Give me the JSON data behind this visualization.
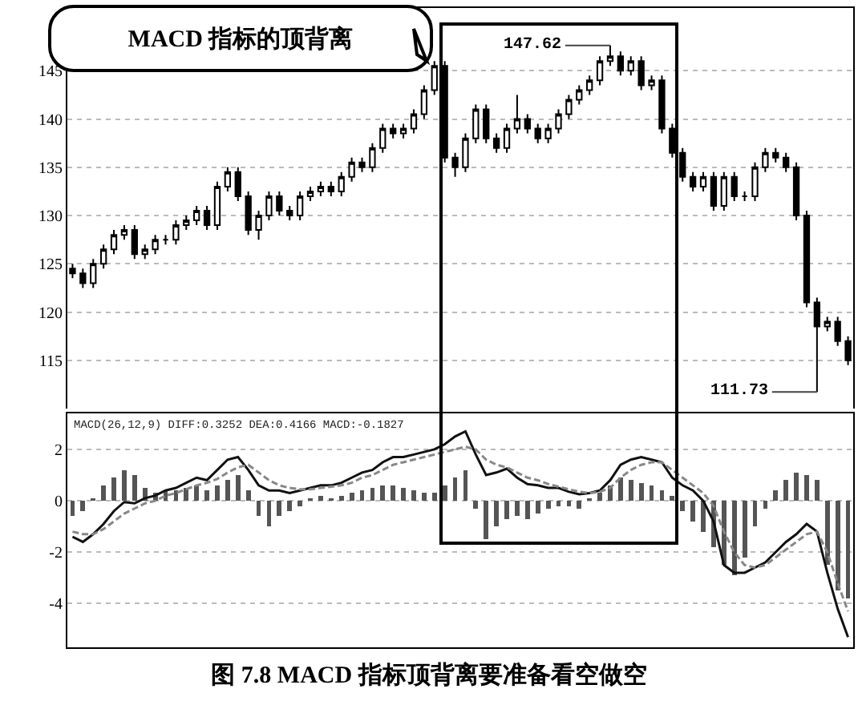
{
  "chart_data": [
    {
      "type": "candlestick",
      "title": "图 7.8    MACD 指标顶背离要准备看空做空",
      "color": "#000000",
      "categories": [
        null,
        null,
        null,
        null,
        null,
        null,
        null,
        null,
        null,
        null,
        null,
        null,
        null,
        null,
        null,
        null,
        null,
        null,
        null,
        null,
        null,
        null,
        null,
        null,
        null,
        null,
        null,
        null,
        null,
        null,
        null,
        null,
        null,
        null,
        null,
        null,
        null,
        null,
        null,
        null,
        null,
        null,
        null,
        null,
        null,
        null,
        null,
        null,
        null,
        null,
        null,
        null,
        null,
        null,
        null,
        null,
        null,
        null,
        null,
        null,
        null,
        null,
        null,
        null,
        null,
        null,
        null,
        null,
        null,
        null,
        null,
        null,
        null,
        null,
        null,
        null
      ],
      "ohlc": [
        [
          124.5,
          125,
          123.5,
          124
        ],
        [
          124,
          124.5,
          122.5,
          123
        ],
        [
          123,
          125.5,
          122.5,
          125
        ],
        [
          125,
          127,
          124.5,
          126.5
        ],
        [
          126.5,
          128.5,
          126,
          128
        ],
        [
          128,
          129,
          127.5,
          128.5
        ],
        [
          128.5,
          129,
          125.5,
          126
        ],
        [
          126,
          127,
          125.5,
          126.5
        ],
        [
          126.5,
          128,
          126,
          127.5
        ],
        [
          127.5,
          128,
          127,
          127.5
        ],
        [
          127.5,
          129.5,
          127,
          129
        ],
        [
          129,
          130,
          128.5,
          129.5
        ],
        [
          129.5,
          131,
          129,
          130.5
        ],
        [
          130.5,
          131,
          128.5,
          129
        ],
        [
          129,
          133.5,
          128.5,
          133
        ],
        [
          133,
          135,
          132.5,
          134.5
        ],
        [
          134.5,
          135,
          131.5,
          132
        ],
        [
          132,
          132.5,
          128,
          128.5
        ],
        [
          128.5,
          130.5,
          127.5,
          130
        ],
        [
          130,
          132.5,
          129.5,
          132
        ],
        [
          132,
          132.5,
          130,
          130.5
        ],
        [
          130.5,
          131,
          129.5,
          130
        ],
        [
          130,
          132.5,
          129.5,
          132
        ],
        [
          132,
          133,
          131.5,
          132.5
        ],
        [
          132.5,
          133.5,
          132,
          133
        ],
        [
          133,
          133.5,
          132,
          132.5
        ],
        [
          132.5,
          134.5,
          132,
          134
        ],
        [
          134,
          136,
          133.5,
          135.5
        ],
        [
          135.5,
          136,
          134.5,
          135
        ],
        [
          135,
          137.5,
          134.5,
          137
        ],
        [
          137,
          139.5,
          136.5,
          139
        ],
        [
          139,
          139.5,
          138,
          138.5
        ],
        [
          138.5,
          139.5,
          138,
          139
        ],
        [
          139,
          141,
          138.5,
          140.5
        ],
        [
          140.5,
          143.5,
          140,
          143
        ],
        [
          143,
          146,
          142.5,
          145.5
        ],
        [
          145.5,
          146,
          135.5,
          136
        ],
        [
          136,
          136.5,
          134,
          135
        ],
        [
          135,
          138.5,
          134.5,
          138
        ],
        [
          138,
          141.5,
          137.5,
          141
        ],
        [
          141,
          141.5,
          137.5,
          138
        ],
        [
          138,
          138.5,
          136.5,
          137
        ],
        [
          137,
          139.5,
          136.5,
          139
        ],
        [
          139,
          142.5,
          138.5,
          140
        ],
        [
          140,
          140.5,
          138.5,
          139
        ],
        [
          139,
          139.5,
          137.5,
          138
        ],
        [
          138,
          139.5,
          137.5,
          139
        ],
        [
          139,
          141,
          138.5,
          140.5
        ],
        [
          140.5,
          142.5,
          140,
          142
        ],
        [
          142,
          143.5,
          141.5,
          143
        ],
        [
          143,
          144.5,
          142.5,
          144
        ],
        [
          144,
          146.5,
          143.5,
          146
        ],
        [
          146,
          147.62,
          145.5,
          146.5
        ],
        [
          146.5,
          147,
          144.5,
          145
        ],
        [
          145,
          146.5,
          144.5,
          146
        ],
        [
          146,
          146.5,
          143,
          143.5
        ],
        [
          143.5,
          144.5,
          143,
          144
        ],
        [
          144,
          144.5,
          138.5,
          139
        ],
        [
          139,
          139.5,
          136,
          136.5
        ],
        [
          136.5,
          137,
          133.5,
          134
        ],
        [
          134,
          134.5,
          132.5,
          133
        ],
        [
          133,
          134.5,
          132.5,
          134
        ],
        [
          134,
          134.5,
          130.5,
          131
        ],
        [
          131,
          134.5,
          130.5,
          134
        ],
        [
          134,
          134.5,
          131.5,
          132
        ],
        [
          132,
          132.5,
          131.5,
          132
        ],
        [
          132,
          135.5,
          131.5,
          135
        ],
        [
          135,
          137,
          134.5,
          136.5
        ],
        [
          136.5,
          137,
          135.5,
          136
        ],
        [
          136,
          136.5,
          134.5,
          135
        ],
        [
          135,
          135.5,
          129.5,
          130
        ],
        [
          130,
          130.5,
          120.5,
          121
        ],
        [
          121,
          121.5,
          111.73,
          118.5
        ],
        [
          118.5,
          119.5,
          118,
          119
        ],
        [
          119,
          119.5,
          116.5,
          117
        ],
        [
          117,
          117.5,
          114.5,
          115
        ]
      ],
      "ylim": [
        110,
        151.5
      ],
      "yticks": [
        115,
        120,
        125,
        130,
        135,
        140,
        145
      ],
      "grid": "y",
      "tick_labels": "y",
      "annotations": [
        "MACD 指标的顶背离",
        "147.62",
        "111.73"
      ]
    },
    {
      "type": "bar",
      "categories": [
        null,
        null,
        null,
        null,
        null,
        null,
        null,
        null,
        null,
        null,
        null,
        null,
        null,
        null,
        null,
        null,
        null,
        null,
        null,
        null,
        null,
        null,
        null,
        null,
        null,
        null,
        null,
        null,
        null,
        null,
        null,
        null,
        null,
        null,
        null,
        null,
        null,
        null,
        null,
        null,
        null,
        null,
        null,
        null,
        null,
        null,
        null,
        null,
        null,
        null,
        null,
        null,
        null,
        null,
        null,
        null,
        null,
        null,
        null,
        null,
        null,
        null,
        null,
        null,
        null,
        null,
        null,
        null,
        null,
        null,
        null,
        null,
        null,
        null,
        null,
        null
      ],
      "series": [
        {
          "type": "bar",
          "color": "#555555",
          "values": [
            -0.6,
            -0.4,
            0.1,
            0.6,
            0.9,
            1.2,
            1.0,
            0.5,
            0.3,
            0.4,
            0.4,
            0.5,
            0.6,
            0.4,
            0.6,
            0.8,
            1.0,
            0.4,
            -0.6,
            -1.0,
            -0.6,
            -0.4,
            -0.2,
            0.1,
            0.2,
            0.1,
            0.2,
            0.3,
            0.4,
            0.5,
            0.6,
            0.6,
            0.5,
            0.4,
            0.3,
            0.3,
            0.6,
            0.9,
            1.2,
            -0.3,
            -1.5,
            -1.0,
            -0.7,
            -0.6,
            -0.7,
            -0.5,
            -0.3,
            -0.2,
            -0.2,
            -0.3,
            0.1,
            0.3,
            0.6,
            0.9,
            0.8,
            0.7,
            0.6,
            0.4,
            0.2,
            -0.4,
            -0.8,
            -1.2,
            -1.8,
            -2.5,
            -2.9,
            -2.2,
            -1.0,
            -0.3,
            0.4,
            0.8,
            1.1,
            1.0,
            0.8,
            -2.5,
            -3.5,
            -3.8
          ]
        },
        {
          "type": "line",
          "color": "#111111",
          "line_style": "solid",
          "values": [
            -1.4,
            -1.6,
            -1.3,
            -0.9,
            -0.4,
            -0.05,
            -0.1,
            0.1,
            0.2,
            0.4,
            0.5,
            0.7,
            0.9,
            0.8,
            1.2,
            1.6,
            1.7,
            1.2,
            0.6,
            0.4,
            0.4,
            0.3,
            0.4,
            0.5,
            0.6,
            0.6,
            0.7,
            0.9,
            1.1,
            1.2,
            1.5,
            1.7,
            1.7,
            1.8,
            1.9,
            2.0,
            2.2,
            2.5,
            2.7,
            1.8,
            1.0,
            1.1,
            1.25,
            0.9,
            0.65,
            0.6,
            0.5,
            0.5,
            0.35,
            0.25,
            0.3,
            0.4,
            0.8,
            1.4,
            1.6,
            1.7,
            1.6,
            1.5,
            0.9,
            0.6,
            0.4,
            0.0,
            -0.8,
            -2.5,
            -2.8,
            -2.8,
            -2.6,
            -2.4,
            -2.0,
            -1.6,
            -1.3,
            -0.9,
            -1.2,
            -2.8,
            -4.2,
            -5.3
          ]
        },
        {
          "type": "line",
          "color": "#888888",
          "line_style": "dashed",
          "values": [
            -1.2,
            -1.3,
            -1.3,
            -1.1,
            -0.8,
            -0.5,
            -0.3,
            -0.1,
            0.0,
            0.2,
            0.3,
            0.45,
            0.6,
            0.7,
            0.85,
            1.1,
            1.3,
            1.4,
            1.1,
            0.8,
            0.6,
            0.5,
            0.45,
            0.45,
            0.5,
            0.55,
            0.6,
            0.7,
            0.9,
            1.0,
            1.2,
            1.4,
            1.5,
            1.6,
            1.7,
            1.8,
            1.9,
            2.0,
            2.1,
            2.0,
            1.6,
            1.4,
            1.3,
            1.1,
            0.9,
            0.8,
            0.65,
            0.55,
            0.45,
            0.35,
            0.3,
            0.35,
            0.5,
            0.9,
            1.2,
            1.4,
            1.5,
            1.5,
            1.2,
            0.9,
            0.6,
            0.3,
            -0.2,
            -1.2,
            -2.0,
            -2.5,
            -2.6,
            -2.5,
            -2.2,
            -1.9,
            -1.6,
            -1.3,
            -1.2,
            -2.0,
            -3.2,
            -4.3
          ]
        }
      ],
      "ylim": [
        -5.7,
        3.4
      ],
      "yticks": [
        -4,
        -2,
        0,
        2
      ],
      "grid": "y",
      "tick_labels": "y",
      "annotations": [
        "MACD(26,12,9) DIFF:0.3252 DEA:0.4166 MACD:-0.1827"
      ]
    }
  ]
}
